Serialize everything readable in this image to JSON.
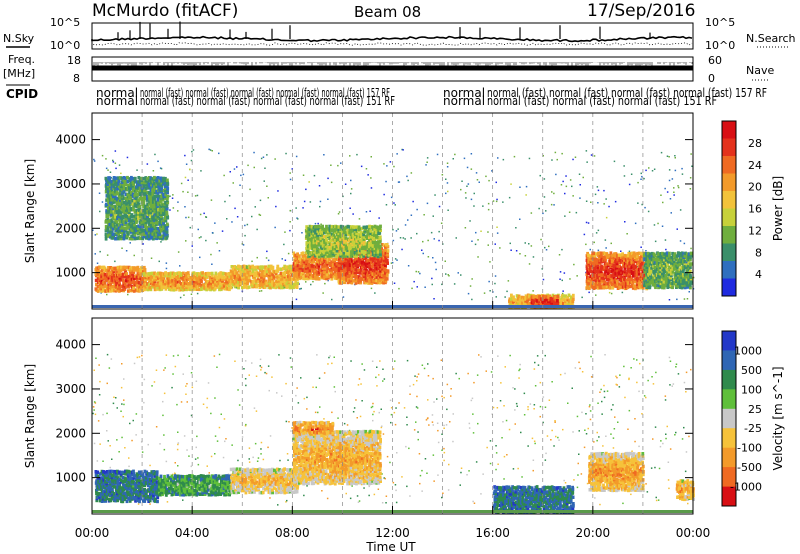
{
  "header": {
    "station": "McMurdo (fitACF)",
    "beam": "Beam 08",
    "date": "17/Sep/2016"
  },
  "labels": {
    "nsky": "N.Sky",
    "nsearch": "N.Search",
    "freq": "Freq.",
    "freq_unit": "[MHz]",
    "nave": "Nave",
    "cpid": "CPID"
  },
  "panel_ticks": {
    "noise_left_top": "10^5",
    "noise_left_bottom": "10^0",
    "noise_right_top": "10^5",
    "noise_right_bottom": "10^0",
    "freq_top": "18",
    "freq_bottom": "8",
    "nave_top": "60",
    "nave_bottom": "0"
  },
  "cpid_text": {
    "row1": [
      "normal",
      "normal (fast) normal (fast) normal (fast) normal (fast) normal (fast) 157 RF",
      "normal",
      "normal (fast) normal (fast) normal (fast) normal (fast) 157 RF"
    ],
    "row2": [
      "normal",
      "normal (fast) normal (fast) normal (fast) normal (fast) 151 RF",
      "normal",
      "normal (fast) normal (fast) normal (fast) 151 RF"
    ]
  },
  "chart_data": [
    {
      "type": "heatmap",
      "name": "Power",
      "ylabel": "Slant Range [km]",
      "xlabel": "Time UT",
      "x_ticks": [
        "00:00",
        "04:00",
        "08:00",
        "12:00",
        "16:00",
        "20:00",
        "00:00"
      ],
      "x_range_hours": [
        0,
        24
      ],
      "y_ticks": [
        1000,
        2000,
        3000,
        4000
      ],
      "y_range_km": [
        180,
        4600
      ],
      "colorbar_label": "Power [dB]",
      "colorbar_ticks": [
        "4",
        "8",
        "12",
        "16",
        "20",
        "24",
        "28"
      ],
      "colorbar_colors": [
        "#1f2be0",
        "#2f6fbf",
        "#3a8f6a",
        "#6fae3e",
        "#c7d13a",
        "#f2c23a",
        "#f39a2a",
        "#ef6a22",
        "#e4321c",
        "#d80f14"
      ],
      "regions": [
        {
          "t0": 0.1,
          "t1": 2.1,
          "r0": 620,
          "r1": 1180,
          "level": 0.9
        },
        {
          "t0": 2.0,
          "t1": 5.5,
          "r0": 650,
          "r1": 1050,
          "level": 0.75
        },
        {
          "t0": 5.5,
          "t1": 8.2,
          "r0": 700,
          "r1": 1200,
          "level": 0.7
        },
        {
          "t0": 8.0,
          "t1": 10.2,
          "r0": 900,
          "r1": 1500,
          "level": 0.85
        },
        {
          "t0": 9.8,
          "t1": 11.8,
          "r0": 800,
          "r1": 1700,
          "level": 0.95
        },
        {
          "t0": 8.5,
          "t1": 11.5,
          "r0": 1400,
          "r1": 2100,
          "level": 0.45
        },
        {
          "t0": 0.5,
          "t1": 3.0,
          "r0": 1800,
          "r1": 3200,
          "level": 0.3
        },
        {
          "t0": 16.6,
          "t1": 19.2,
          "r0": 250,
          "r1": 550,
          "level": 0.7
        },
        {
          "t0": 17.5,
          "t1": 18.6,
          "r0": 250,
          "r1": 520,
          "level": 1.0
        },
        {
          "t0": 19.7,
          "t1": 22.2,
          "r0": 680,
          "r1": 1500,
          "level": 0.95
        },
        {
          "t0": 22.0,
          "t1": 23.9,
          "r0": 700,
          "r1": 1500,
          "level": 0.35
        }
      ]
    },
    {
      "type": "heatmap",
      "name": "Velocity",
      "ylabel": "Slant Range [km]",
      "xlabel": "Time UT",
      "x_ticks": [
        "00:00",
        "04:00",
        "08:00",
        "12:00",
        "16:00",
        "20:00",
        "00:00"
      ],
      "x_range_hours": [
        0,
        24
      ],
      "y_ticks": [
        1000,
        2000,
        3000,
        4000
      ],
      "y_range_km": [
        180,
        4600
      ],
      "colorbar_label": "Velocity [m s^-1]",
      "colorbar_ticks": [
        "1000",
        "500",
        "100",
        "25",
        "-25",
        "-100",
        "-500",
        "-1000"
      ],
      "colorbar_colors": [
        "#2338c8",
        "#2f66b4",
        "#2f8a4c",
        "#5fbf3a",
        "#c8c8c8",
        "#f6c23a",
        "#f39a2a",
        "#ef6a22",
        "#d80f14"
      ],
      "regions": [
        {
          "t0": 0.1,
          "t1": 2.6,
          "r0": 500,
          "r1": 1200,
          "level": 0.2
        },
        {
          "t0": 2.6,
          "t1": 5.5,
          "r0": 650,
          "r1": 1100,
          "level": 0.35
        },
        {
          "t0": 5.5,
          "t1": 8.2,
          "r0": 700,
          "r1": 1250,
          "level": 0.7
        },
        {
          "t0": 8.0,
          "t1": 11.5,
          "r0": 900,
          "r1": 2100,
          "level": 0.75
        },
        {
          "t0": 8.0,
          "t1": 9.6,
          "r0": 2000,
          "r1": 2300,
          "level": 0.85
        },
        {
          "t0": 16.0,
          "t1": 19.2,
          "r0": 250,
          "r1": 850,
          "level": 0.2
        },
        {
          "t0": 19.8,
          "t1": 22.0,
          "r0": 750,
          "r1": 1600,
          "level": 0.8
        },
        {
          "t0": 23.3,
          "t1": 24.0,
          "r0": 550,
          "r1": 1000,
          "level": 0.75
        }
      ]
    }
  ]
}
